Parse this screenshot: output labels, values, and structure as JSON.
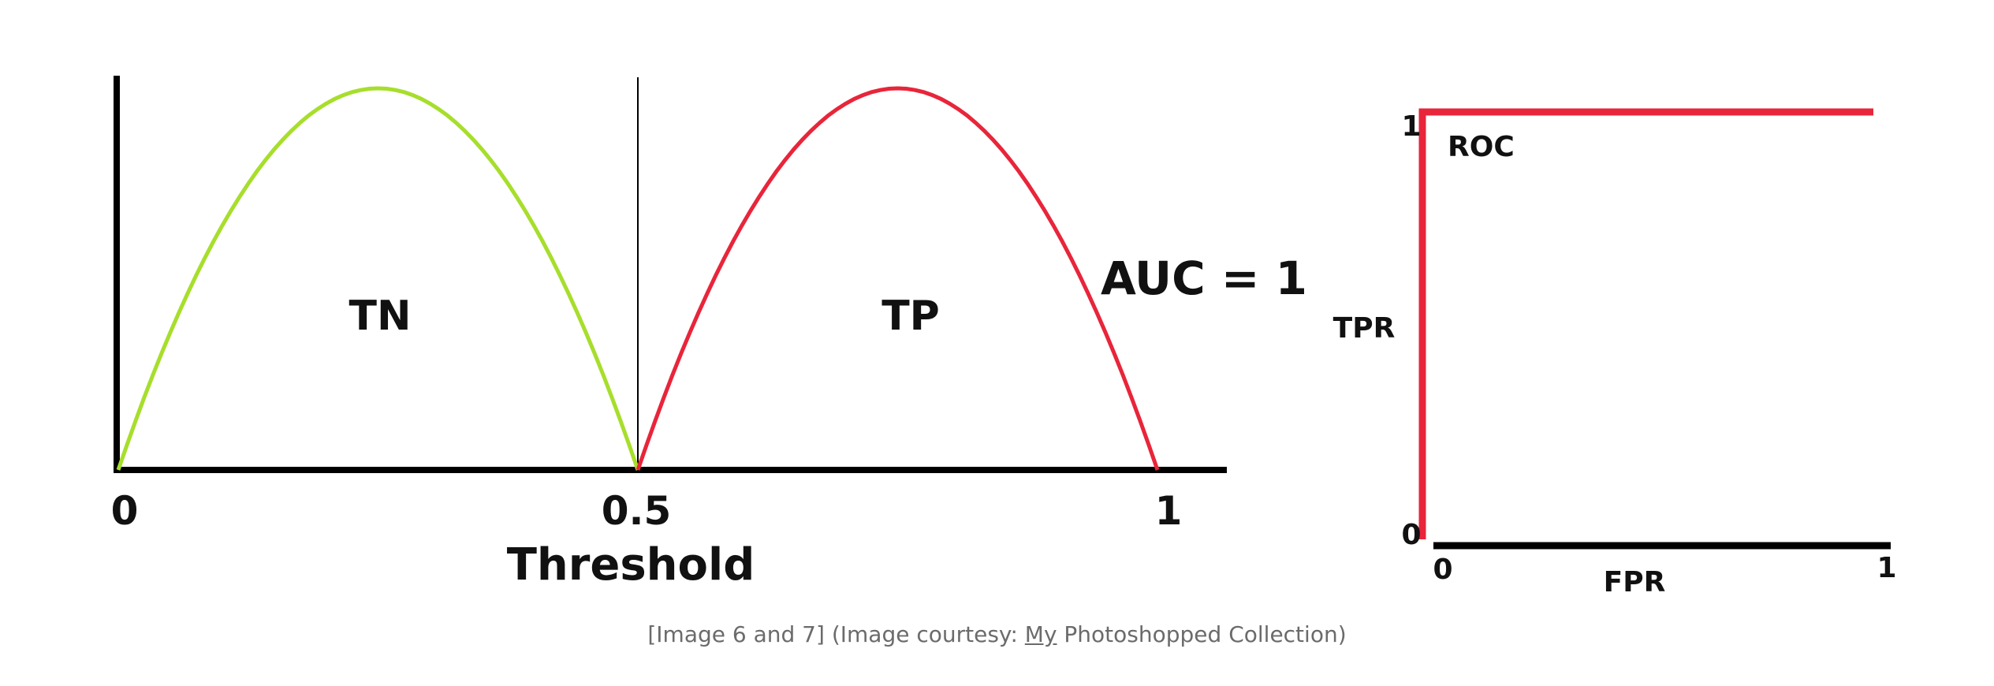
{
  "chart_data": [
    {
      "type": "line",
      "xlabel": "Threshold",
      "x_ticks": [
        "0",
        "0.5",
        "1"
      ],
      "xlim": [
        0,
        1
      ],
      "series": [
        {
          "name": "TN",
          "color": "#a7de2c",
          "shape": "parabola",
          "x": [
            0,
            0.125,
            0.25,
            0.375,
            0.5
          ],
          "y": [
            0,
            0.75,
            1,
            0.75,
            0
          ]
        },
        {
          "name": "TP",
          "color": "#e8253a",
          "shape": "parabola",
          "x": [
            0.5,
            0.625,
            0.75,
            0.875,
            1
          ],
          "y": [
            0,
            0.75,
            1,
            0.75,
            0
          ]
        }
      ],
      "threshold_line": 0.5,
      "annotation": "AUC = 1"
    },
    {
      "type": "line",
      "title": "ROC",
      "xlabel": "FPR",
      "ylabel": "TPR",
      "x_ticks": [
        "0",
        "1"
      ],
      "y_ticks": [
        "0",
        "1"
      ],
      "xlim": [
        0,
        1
      ],
      "ylim": [
        0,
        1
      ],
      "series": [
        {
          "color": "#e8253a",
          "x": [
            0,
            0,
            1
          ],
          "y": [
            0,
            1,
            1
          ]
        }
      ]
    }
  ],
  "caption": {
    "prefix": "[Image 6 and 7] (Image courtesy: ",
    "link": "My",
    "suffix": " Photoshopped Collection)"
  }
}
